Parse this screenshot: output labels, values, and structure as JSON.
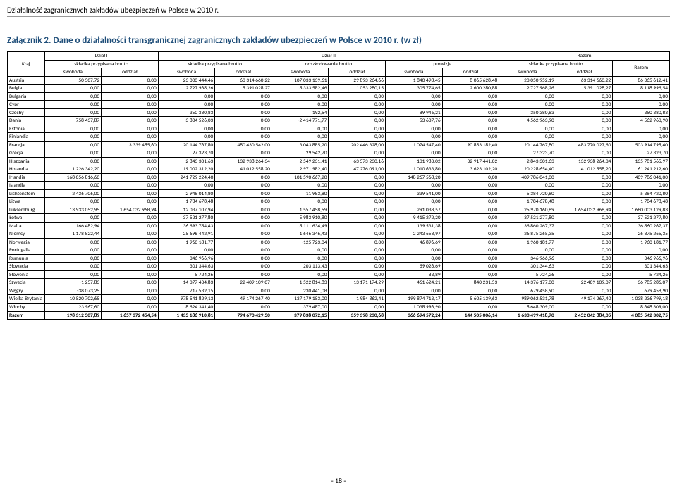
{
  "sourceTitle": "Działalność zagranicznych zakładów ubezpieczeń w Polsce w 2010 r.",
  "attachment": "Załącznik 2. Dane o działalności transgranicznej zagranicznych zakładów ubezpieczeń w Polsce w 2010 r. (w zł)",
  "pageNumber": "- 18 -",
  "headers": {
    "kraj": "Kraj",
    "dzialI": "Dział I",
    "dzialII": "Dział II",
    "razem": "Razem",
    "skladka": "składka przypisana brutto",
    "odszk": "odszkodowania brutto",
    "prowizje": "prowizje",
    "swoboda": "swoboda",
    "oddzial": "oddział"
  },
  "rows": [
    {
      "c": "Austria",
      "v": [
        "50 507,72",
        "0,00",
        "23 000 444,46",
        "63 314 660,22",
        "107 033 139,61",
        "29 893 264,66",
        "1 840 498,45",
        "8 065 628,48",
        "23 050 952,19",
        "63 314 660,22",
        "86 365 612,41"
      ]
    },
    {
      "c": "Belgia",
      "v": [
        "0,00",
        "0,00",
        "2 727 968,26",
        "5 391 028,27",
        "8 333 582,46",
        "1 053 280,15",
        "305 774,65",
        "2 600 280,88",
        "2 727 968,26",
        "5 391 028,27",
        "8 118 996,54"
      ]
    },
    {
      "c": "Bułgaria",
      "v": [
        "0,00",
        "0,00",
        "0,00",
        "0,00",
        "0,00",
        "0,00",
        "0,00",
        "0,00",
        "0,00",
        "0,00",
        "0,00"
      ]
    },
    {
      "c": "Cypr",
      "v": [
        "0,00",
        "0,00",
        "0,00",
        "0,00",
        "0,00",
        "0,00",
        "0,00",
        "0,00",
        "0,00",
        "0,00",
        "0,00"
      ]
    },
    {
      "c": "Czechy",
      "v": [
        "0,00",
        "0,00",
        "350 380,83",
        "0,00",
        "192,54",
        "0,00",
        "89 946,21",
        "0,00",
        "350 380,83",
        "0,00",
        "350 380,83"
      ]
    },
    {
      "c": "Dania",
      "v": [
        "758 437,87",
        "0,00",
        "3 804 526,03",
        "0,00",
        "-2 414 771,77",
        "0,00",
        "53 637,76",
        "0,00",
        "4 562 963,90",
        "0,00",
        "4 562 963,90"
      ]
    },
    {
      "c": "Estonia",
      "v": [
        "0,00",
        "0,00",
        "0,00",
        "0,00",
        "0,00",
        "0,00",
        "0,00",
        "0,00",
        "0,00",
        "0,00",
        "0,00"
      ]
    },
    {
      "c": "Finlandia",
      "v": [
        "0,00",
        "0,00",
        "0,00",
        "0,00",
        "0,00",
        "0,00",
        "0,00",
        "0,00",
        "0,00",
        "0,00",
        "0,00"
      ]
    },
    {
      "c": "Francja",
      "v": [
        "0,00",
        "3 339 485,60",
        "20 144 767,80",
        "480 430 542,00",
        "3 043 885,20",
        "202 446 328,00",
        "1 074 547,40",
        "90 853 182,40",
        "20 144 767,80",
        "483 770 027,60",
        "503 914 795,40"
      ]
    },
    {
      "c": "Grecja",
      "v": [
        "0,00",
        "0,00",
        "27 323,70",
        "0,00",
        "29 542,70",
        "0,00",
        "0,00",
        "0,00",
        "27 323,70",
        "0,00",
        "27 323,70"
      ]
    },
    {
      "c": "Hiszpania",
      "v": [
        "0,00",
        "0,00",
        "2 843 301,63",
        "132 938 264,34",
        "2 549 231,41",
        "63 573 230,16",
        "131 983,02",
        "32 917 441,02",
        "2 843 301,63",
        "132 938 264,34",
        "135 781 565,97"
      ]
    },
    {
      "c": "Holandia",
      "v": [
        "1 226 342,20",
        "0,00",
        "19 002 312,20",
        "41 012 558,20",
        "2 971 982,40",
        "47 276 091,00",
        "1 010 633,80",
        "3 623 102,20",
        "20 228 654,40",
        "41 012 558,20",
        "61 241 212,60"
      ]
    },
    {
      "c": "Irlandia",
      "v": [
        "168 056 816,60",
        "0,00",
        "241 729 224,40",
        "0,00",
        "101 590 667,20",
        "0,00",
        "148 267 568,20",
        "0,00",
        "409 786 041,00",
        "0,00",
        "409 786 041,00"
      ]
    },
    {
      "c": "Islandia",
      "v": [
        "0,00",
        "0,00",
        "0,00",
        "0,00",
        "0,00",
        "0,00",
        "0,00",
        "0,00",
        "0,00",
        "0,00",
        "0,00"
      ]
    },
    {
      "c": "Lichtenstein",
      "v": [
        "2 436 706,00",
        "0,00",
        "2 948 014,80",
        "0,00",
        "11 983,80",
        "0,00",
        "339 541,00",
        "0,00",
        "5 384 720,80",
        "0,00",
        "5 384 720,80"
      ]
    },
    {
      "c": "Litwa",
      "v": [
        "0,00",
        "0,00",
        "1 784 678,48",
        "0,00",
        "0,00",
        "0,00",
        "0,00",
        "0,00",
        "1 784 678,48",
        "0,00",
        "1 784 678,48"
      ]
    },
    {
      "c": "Luksemburg",
      "v": [
        "13 933 052,95",
        "1 654 032 968,94",
        "12 037 107,94",
        "0,00",
        "1 557 458,59",
        "0,00",
        "291 038,57",
        "0,00",
        "25 970 160,89",
        "1 654 032 968,94",
        "1 680 003 129,83"
      ]
    },
    {
      "c": "Łotwa",
      "v": [
        "0,00",
        "0,00",
        "37 521 277,80",
        "0,00",
        "5 983 910,80",
        "0,00",
        "9 415 272,20",
        "0,00",
        "37 521 277,80",
        "0,00",
        "37 521 277,80"
      ]
    },
    {
      "c": "Malta",
      "v": [
        "166 482,94",
        "0,00",
        "36 693 784,43",
        "0,00",
        "8 111 634,49",
        "0,00",
        "139 531,38",
        "0,00",
        "36 860 267,37",
        "0,00",
        "36 860 267,37"
      ]
    },
    {
      "c": "Niemcy",
      "v": [
        "1 178 822,44",
        "0,00",
        "25 696 442,91",
        "0,00",
        "1 646 346,43",
        "0,00",
        "2 243 658,97",
        "0,00",
        "26 875 265,35",
        "0,00",
        "26 875 265,35"
      ]
    },
    {
      "c": "Norwegia",
      "v": [
        "0,00",
        "0,00",
        "1 960 181,77",
        "0,00",
        "-125 723,04",
        "0,00",
        "46 896,69",
        "0,00",
        "1 960 181,77",
        "0,00",
        "1 960 181,77"
      ]
    },
    {
      "c": "Portugalia",
      "v": [
        "0,00",
        "0,00",
        "0,00",
        "0,00",
        "0,00",
        "0,00",
        "0,00",
        "0,00",
        "0,00",
        "0,00",
        "0,00"
      ]
    },
    {
      "c": "Rumunia",
      "v": [
        "0,00",
        "0,00",
        "346 966,96",
        "0,00",
        "0,00",
        "0,00",
        "0,00",
        "0,00",
        "346 966,96",
        "0,00",
        "346 966,96"
      ]
    },
    {
      "c": "Słowacja",
      "v": [
        "0,00",
        "0,00",
        "301 344,63",
        "0,00",
        "203 113,43",
        "0,00",
        "69 026,69",
        "0,00",
        "301 344,63",
        "0,00",
        "301 344,63"
      ]
    },
    {
      "c": "Słowenia",
      "v": [
        "0,00",
        "0,00",
        "5 724,26",
        "0,00",
        "0,00",
        "0,00",
        "83,89",
        "0,00",
        "5 724,26",
        "0,00",
        "5 724,26"
      ]
    },
    {
      "c": "Szwecja",
      "v": [
        "-1 257,83",
        "0,00",
        "14 377 434,83",
        "22 409 109,07",
        "1 522 814,83",
        "13 171 174,29",
        "461 624,21",
        "840 231,53",
        "14 376 177,00",
        "22 409 109,07",
        "36 785 286,07"
      ]
    },
    {
      "c": "Węgry",
      "v": [
        "-38 073,25",
        "0,00",
        "717 532,15",
        "0,00",
        "230 441,08",
        "0,00",
        "0,00",
        "0,00",
        "679 458,90",
        "0,00",
        "679 458,90"
      ]
    },
    {
      "c": "Wielka Brytania",
      "v": [
        "10 520 702,65",
        "0,00",
        "978 541 829,13",
        "49 174 267,40",
        "137 179 153,00",
        "1 984 862,41",
        "199 874 713,17",
        "5 605 139,63",
        "989 062 531,78",
        "49 174 267,40",
        "1 038 236 799,18"
      ]
    },
    {
      "c": "Włochy",
      "v": [
        "23 967,60",
        "0,00",
        "8 624 341,40",
        "0,00",
        "379 487,00",
        "0,00",
        "1 038 996,90",
        "0,00",
        "8 648 309,00",
        "0,00",
        "8 648 309,00"
      ]
    }
  ],
  "total": {
    "c": "Razem",
    "v": [
      "198 312 507,89",
      "1 657 372 454,54",
      "1 435 186 910,81",
      "794 670 429,50",
      "379 838 072,15",
      "359 398 230,68",
      "366 694 572,24",
      "144 505 006,14",
      "1 633 499 418,70",
      "2 452 042 884,05",
      "4 085 542 302,75"
    ]
  }
}
